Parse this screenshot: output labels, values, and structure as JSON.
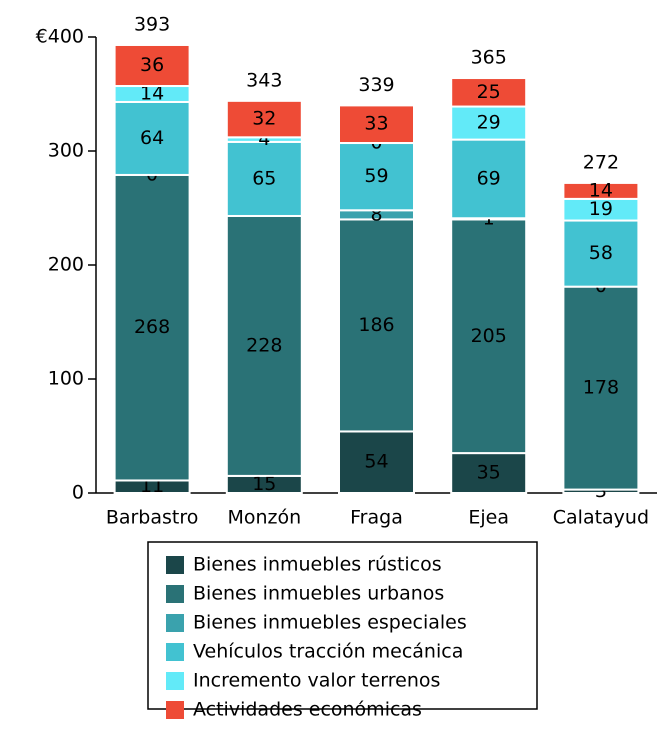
{
  "chart_data": {
    "type": "stacked_bar",
    "categories": [
      "Barbastro",
      "Monzón",
      "Fraga",
      "Ejea",
      "Calatayud"
    ],
    "series": [
      {
        "name": "Bienes inmuebles rústicos",
        "color": "#1b4649",
        "label_color": "#ffffff",
        "values": [
          11,
          15,
          54,
          35,
          3
        ]
      },
      {
        "name": "Bienes inmuebles urbanos",
        "color": "#2a7276",
        "label_color": "#ffffff",
        "values": [
          268,
          228,
          186,
          205,
          178
        ]
      },
      {
        "name": "Bienes inmuebles especiales",
        "color": "#3aa2ad",
        "label_color": "#000000",
        "values": [
          0,
          null,
          8,
          1,
          0
        ]
      },
      {
        "name": "Vehículos tracción mecánica",
        "color": "#42c2d1",
        "label_color": "#000000",
        "values": [
          64,
          65,
          59,
          69,
          58
        ]
      },
      {
        "name": "Incremento valor terrenos",
        "color": "#62eaf8",
        "label_color": "#000000",
        "values": [
          14,
          4,
          0,
          29,
          19
        ]
      },
      {
        "name": "Actividades económicas",
        "color": "#ee4b36",
        "label_color": "#000000",
        "values": [
          36,
          32,
          33,
          25,
          14
        ]
      }
    ],
    "totals": [
      393,
      343,
      339,
      365,
      272
    ],
    "ylim": [
      0,
      400
    ],
    "yticks": [
      0,
      100,
      200,
      300,
      {
        "value": 400,
        "label": "€400"
      }
    ]
  }
}
